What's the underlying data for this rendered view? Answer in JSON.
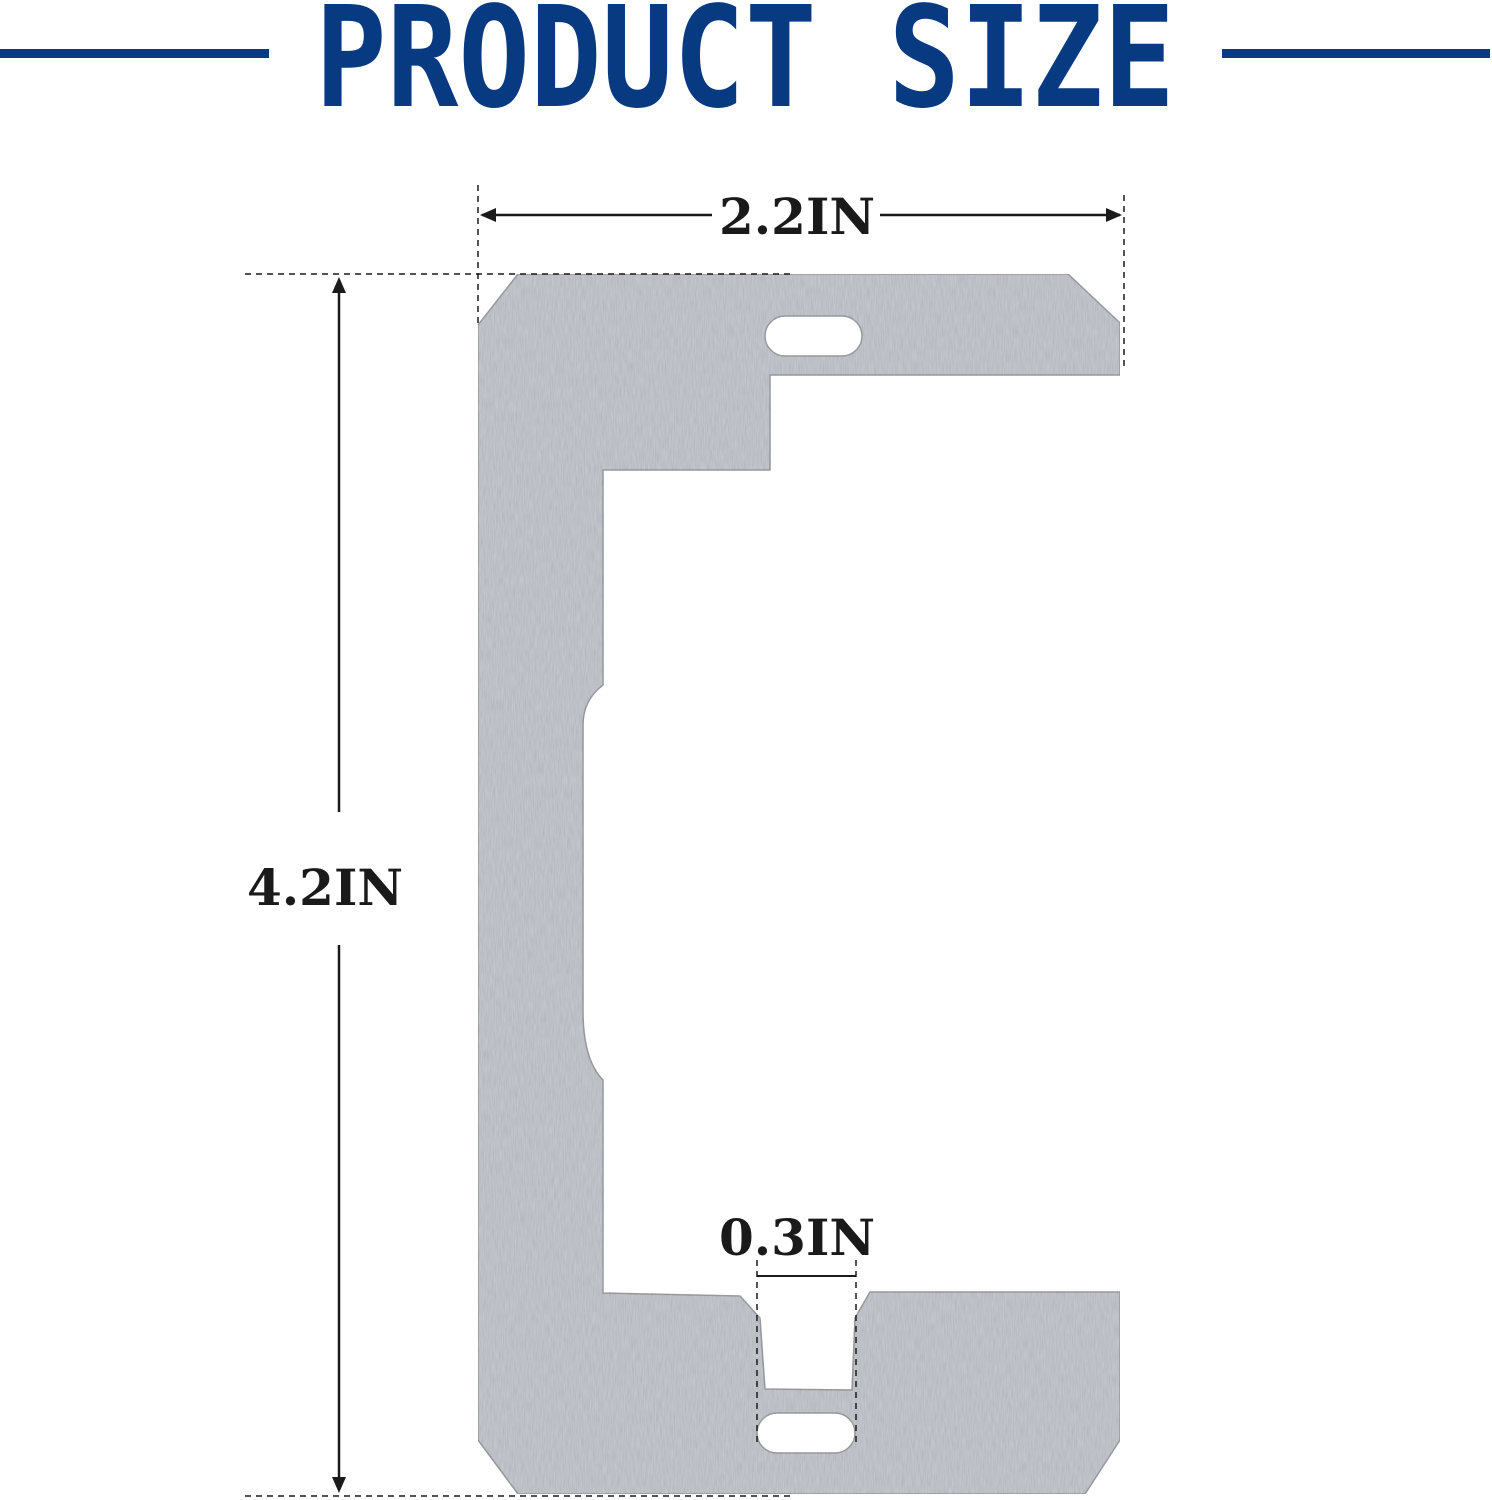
{
  "title": "PRODUCT SIZE",
  "colors": {
    "title": "#073a80",
    "plate": "#c3c6cb",
    "dimension": "#1a1a1a"
  },
  "dimensions": {
    "width": "2.2IN",
    "height": "4.2IN",
    "notch_width": "0.3IN"
  }
}
